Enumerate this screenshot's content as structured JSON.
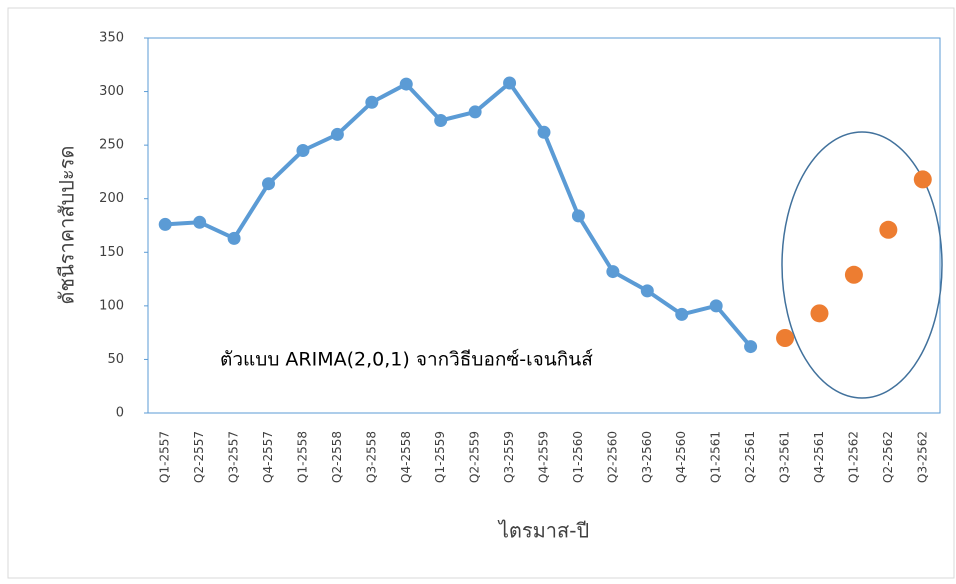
{
  "chart_data": {
    "type": "line",
    "annotation": "ตัวแบบ ARIMA(2,0,1) จากวิธีบอกซ์-เจนกินส์",
    "x_label": "ไตรมาส-ปี",
    "y_label": "ดัชนีราคาสับปะรด",
    "categories": [
      "Q1-2557",
      "Q2-2557",
      "Q3-2557",
      "Q4-2557",
      "Q1-2558",
      "Q2-2558",
      "Q3-2558",
      "Q4-2558",
      "Q1-2559",
      "Q2-2559",
      "Q3-2559",
      "Q4-2559",
      "Q1-2560",
      "Q2-2560",
      "Q3-2560",
      "Q4-2560",
      "Q1-2561",
      "Q2-2561",
      "Q3-2561",
      "Q4-2561",
      "Q1-2562",
      "Q2-2562",
      "Q3-2562"
    ],
    "series": [
      {
        "color": "#5b9bd5",
        "line": true,
        "values": [
          176,
          178,
          163,
          214,
          245,
          260,
          290,
          307,
          273,
          281,
          308,
          262,
          184,
          132,
          114,
          92,
          100,
          62,
          null,
          null,
          null,
          null,
          null
        ]
      },
      {
        "color": "#ed7d31",
        "line": false,
        "values": [
          null,
          null,
          null,
          null,
          null,
          null,
          null,
          null,
          null,
          null,
          null,
          null,
          null,
          null,
          null,
          null,
          null,
          null,
          70,
          93,
          129,
          171,
          218
        ]
      }
    ],
    "ylim": [
      0,
      350
    ],
    "yticks": [
      0,
      50,
      100,
      150,
      200,
      250,
      300,
      350
    ]
  }
}
